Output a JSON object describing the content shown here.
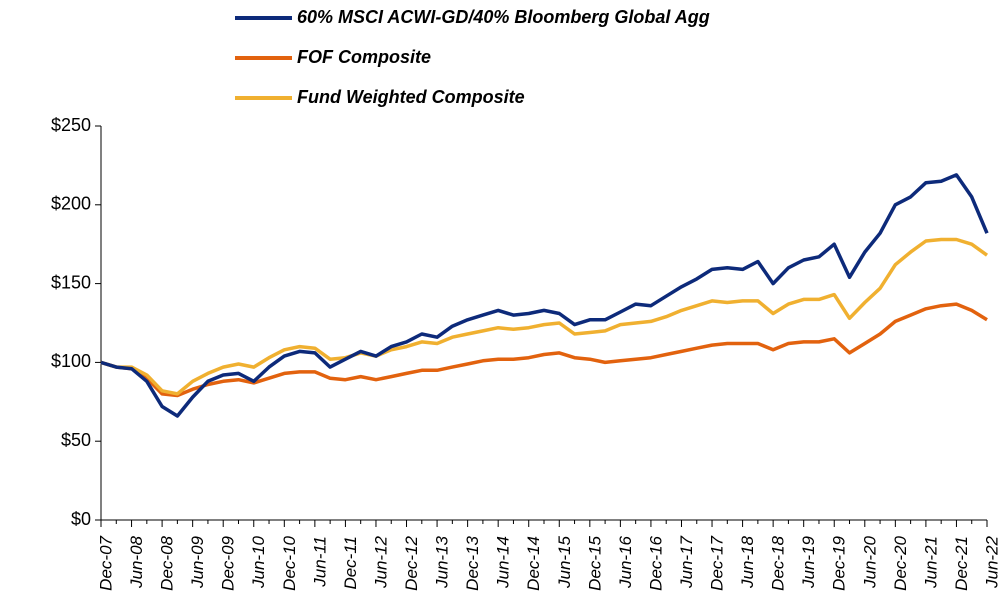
{
  "chart_data": {
    "type": "line",
    "categories": [
      "Dec-07",
      null,
      "Jun-08",
      null,
      "Dec-08",
      null,
      "Jun-09",
      null,
      "Dec-09",
      null,
      "Jun-10",
      null,
      "Dec-10",
      null,
      "Jun-11",
      null,
      "Dec-11",
      null,
      "Jun-12",
      null,
      "Dec-12",
      null,
      "Jun-13",
      null,
      "Dec-13",
      null,
      "Jun-14",
      null,
      "Dec-14",
      null,
      "Jun-15",
      null,
      "Dec-15",
      null,
      "Jun-16",
      null,
      "Dec-16",
      null,
      "Jun-17",
      null,
      "Dec-17",
      null,
      "Jun-18",
      null,
      "Dec-18",
      null,
      "Jun-19",
      null,
      "Dec-19",
      null,
      "Jun-20",
      null,
      "Dec-20",
      null,
      "Jun-21",
      null,
      "Dec-21",
      null,
      "Jun-22"
    ],
    "series": [
      {
        "name": "60% MSCI ACWI-GD/40% Bloomberg Global Agg",
        "color": "#0d2a7a",
        "values": [
          100,
          97,
          96,
          88,
          72,
          66,
          78,
          88,
          92,
          93,
          88,
          97,
          104,
          107,
          106,
          97,
          102,
          107,
          104,
          110,
          113,
          118,
          116,
          123,
          127,
          130,
          133,
          130,
          131,
          133,
          131,
          124,
          127,
          127,
          132,
          137,
          136,
          142,
          148,
          153,
          159,
          160,
          159,
          164,
          150,
          160,
          165,
          167,
          175,
          154,
          170,
          182,
          200,
          205,
          214,
          215,
          219,
          205,
          182
        ]
      },
      {
        "name": "FOF Composite",
        "color": "#e2620e",
        "values": [
          100,
          97,
          96,
          90,
          80,
          79,
          83,
          86,
          88,
          89,
          87,
          90,
          93,
          94,
          94,
          90,
          89,
          91,
          89,
          91,
          93,
          95,
          95,
          97,
          99,
          101,
          102,
          102,
          103,
          105,
          106,
          103,
          102,
          100,
          101,
          102,
          103,
          105,
          107,
          109,
          111,
          112,
          112,
          112,
          108,
          112,
          113,
          113,
          115,
          106,
          112,
          118,
          126,
          130,
          134,
          136,
          137,
          133,
          127
        ]
      },
      {
        "name": "Fund Weighted Composite",
        "color": "#f0b030",
        "values": [
          100,
          97,
          97,
          92,
          82,
          80,
          88,
          93,
          97,
          99,
          97,
          103,
          108,
          110,
          109,
          102,
          103,
          106,
          104,
          108,
          110,
          113,
          112,
          116,
          118,
          120,
          122,
          121,
          122,
          124,
          125,
          118,
          119,
          120,
          124,
          125,
          126,
          129,
          133,
          136,
          139,
          138,
          139,
          139,
          131,
          137,
          140,
          140,
          143,
          128,
          138,
          147,
          162,
          170,
          177,
          178,
          178,
          175,
          168
        ]
      }
    ],
    "ylim": [
      0,
      250
    ],
    "yticks": [
      {
        "value": 0,
        "label": "$0"
      },
      {
        "value": 50,
        "label": "$50"
      },
      {
        "value": 100,
        "label": "$100"
      },
      {
        "value": 150,
        "label": "$150"
      },
      {
        "value": 200,
        "label": "$200"
      },
      {
        "value": 250,
        "label": "$250"
      }
    ],
    "legend": "top"
  }
}
